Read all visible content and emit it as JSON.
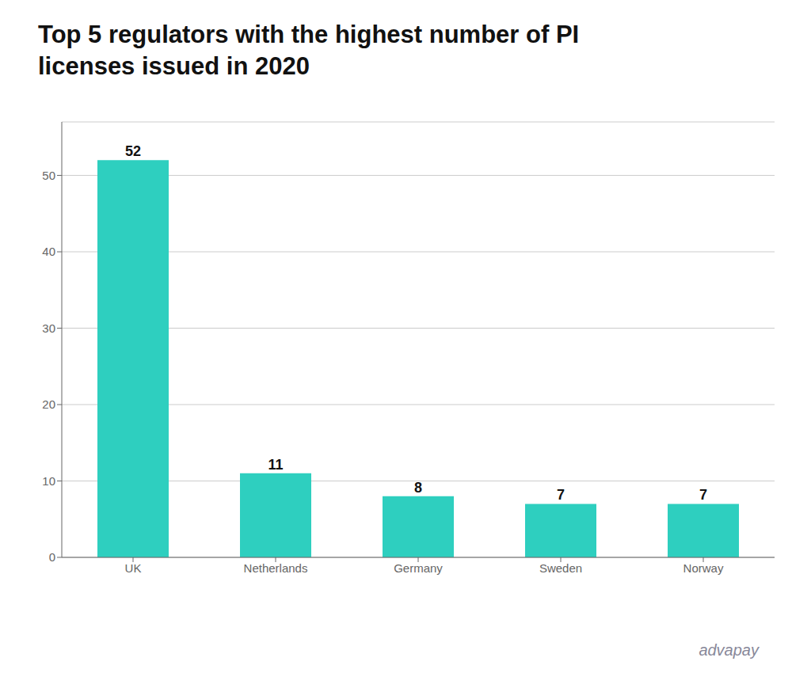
{
  "chart_data": {
    "type": "bar",
    "title": "Top 5 regulators with the highest number of PI\nlicenses issued in 2020",
    "categories": [
      "UK",
      "Netherlands",
      "Germany",
      "Sweden",
      "Norway"
    ],
    "values": [
      52,
      11,
      8,
      7,
      7
    ],
    "color": "#2ECFBF",
    "ylim": [
      0,
      57
    ],
    "yticks": [
      0,
      10,
      20,
      30,
      40,
      50
    ],
    "grid": true,
    "data_labels": true,
    "annotations": [
      "advapay"
    ]
  }
}
